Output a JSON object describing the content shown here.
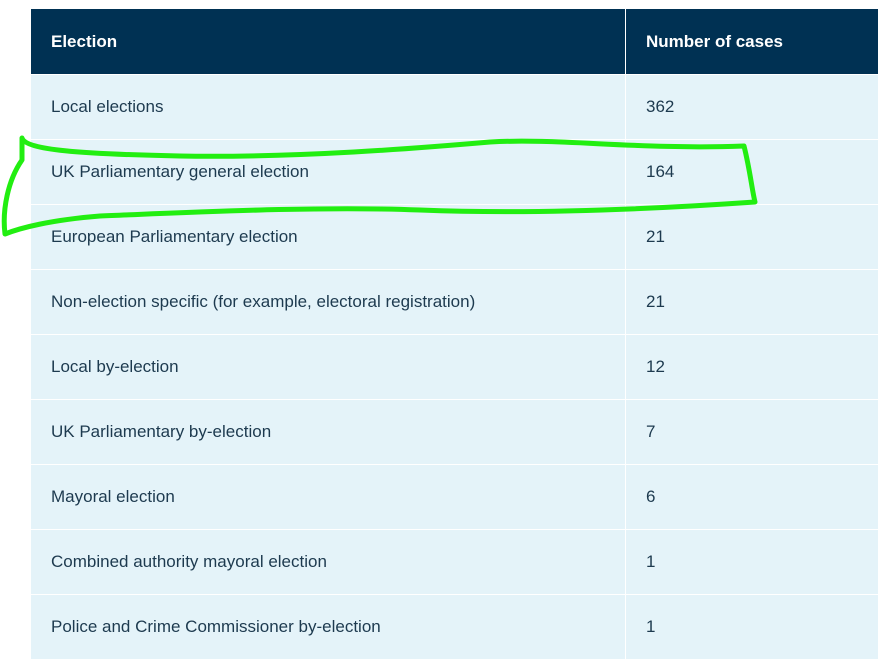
{
  "table": {
    "headers": {
      "election": "Election",
      "cases": "Number of cases"
    },
    "rows": [
      {
        "election": "Local elections",
        "cases": "362"
      },
      {
        "election": "UK Parliamentary general election",
        "cases": "164"
      },
      {
        "election": "European Parliamentary election",
        "cases": "21"
      },
      {
        "election": "Non-election specific (for example, electoral registration)",
        "cases": "21"
      },
      {
        "election": "Local by-election",
        "cases": "12"
      },
      {
        "election": "UK Parliamentary by-election",
        "cases": "7"
      },
      {
        "election": "Mayoral election",
        "cases": "6"
      },
      {
        "election": "Combined authority mayoral election",
        "cases": "1"
      },
      {
        "election": "Police and Crime Commissioner by-election",
        "cases": "1"
      }
    ]
  },
  "colors": {
    "header_bg": "#003153",
    "row_bg": "#e4f3f9",
    "highlight_stroke": "#22ee11"
  }
}
